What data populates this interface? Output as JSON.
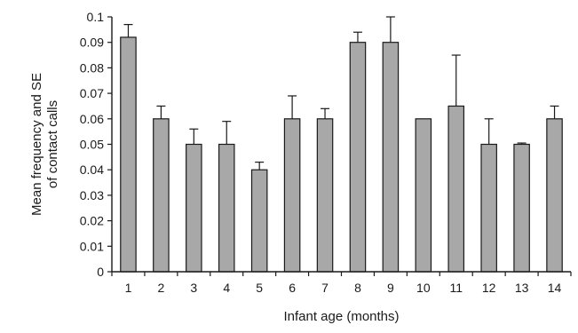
{
  "chart_data": {
    "type": "bar",
    "xlabel": "Infant age (months)",
    "ylabel_lines": [
      "Mean frequency and SE",
      "of contact calls"
    ],
    "ylim": [
      0,
      0.1
    ],
    "yticks": [
      0,
      0.01,
      0.02,
      0.03,
      0.04,
      0.05,
      0.06,
      0.07,
      0.08,
      0.09,
      0.1
    ],
    "ytick_labels": [
      "0",
      "0.01",
      "0.02",
      "0.03",
      "0.04",
      "0.05",
      "0.06",
      "0.07",
      "0.08",
      "0.09",
      "0.1"
    ],
    "categories": [
      "1",
      "2",
      "3",
      "4",
      "5",
      "6",
      "7",
      "8",
      "9",
      "10",
      "11",
      "12",
      "13",
      "14"
    ],
    "values": [
      0.092,
      0.06,
      0.05,
      0.05,
      0.04,
      0.06,
      0.06,
      0.09,
      0.09,
      0.06,
      0.065,
      0.05,
      0.05,
      0.06
    ],
    "errors": [
      0.005,
      0.005,
      0.006,
      0.009,
      0.003,
      0.009,
      0.004,
      0.004,
      0.01,
      0.0,
      0.02,
      0.01,
      0.0005,
      0.005
    ],
    "bar_color": "#a8a8a8",
    "grid": false
  }
}
